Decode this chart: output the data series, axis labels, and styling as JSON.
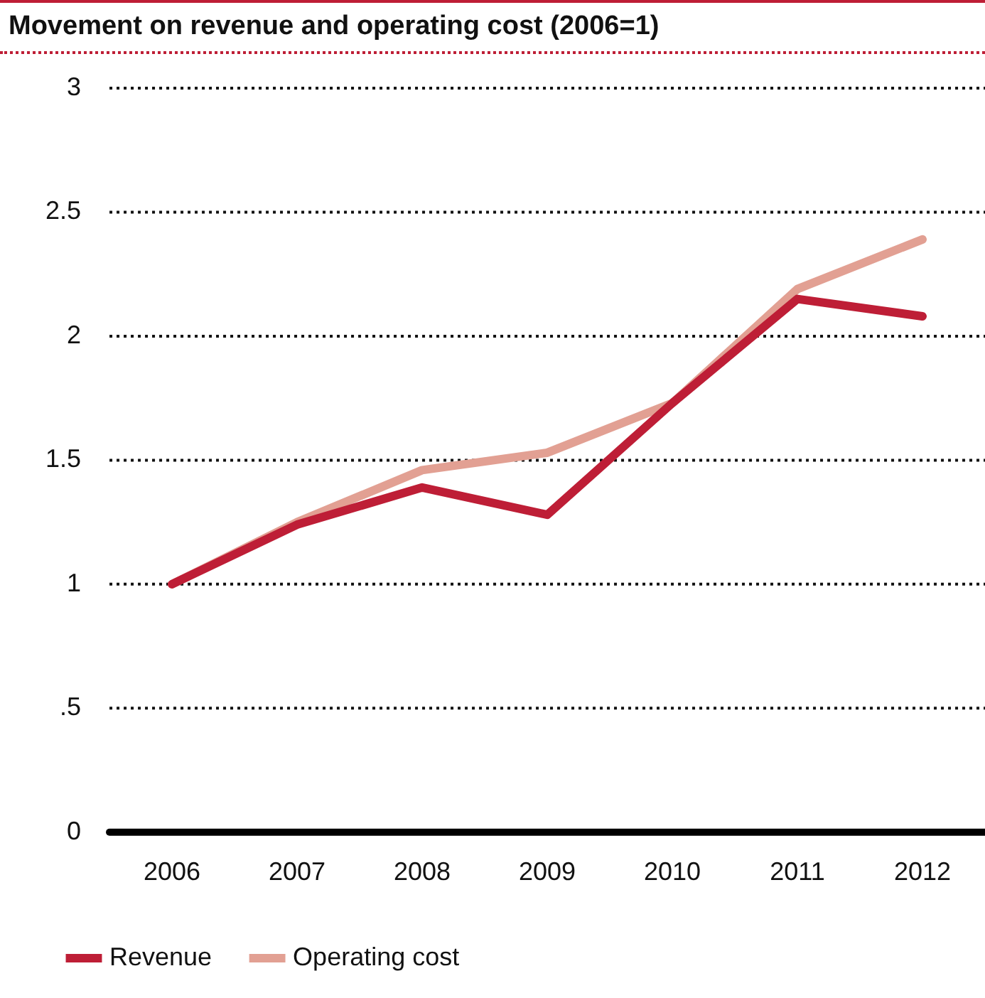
{
  "chart_data": {
    "type": "line",
    "title": "Movement on revenue and operating cost (2006=1)",
    "categories": [
      "2006",
      "2007",
      "2008",
      "2009",
      "2010",
      "2011",
      "2012"
    ],
    "series": [
      {
        "name": "Revenue",
        "color": "#be1e36",
        "values": [
          1.0,
          1.24,
          1.39,
          1.28,
          1.73,
          2.15,
          2.08
        ]
      },
      {
        "name": "Operating cost",
        "color": "#e2a093",
        "values": [
          1.0,
          1.25,
          1.46,
          1.53,
          1.73,
          2.19,
          2.39
        ]
      }
    ],
    "ylim": [
      0,
      3
    ],
    "yticks": [
      0,
      {
        "value": 0.5,
        "label": ".5"
      },
      1,
      1.5,
      2,
      2.5,
      3
    ],
    "grid": "y",
    "legend": "bottom left",
    "marker": "none",
    "line_style": "solid"
  }
}
